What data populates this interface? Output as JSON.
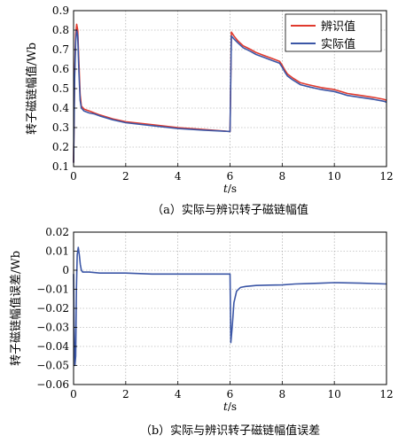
{
  "chart_data": [
    {
      "type": "line",
      "caption": "（a）实际与辨识转子磁链幅值",
      "xlabel": "t/s",
      "ylabel": "转子磁链幅值/Wb",
      "xlim": [
        0,
        12
      ],
      "ylim": [
        0.1,
        0.9
      ],
      "xticks": [
        0,
        2,
        4,
        6,
        8,
        10,
        12
      ],
      "yticks": [
        0.1,
        0.2,
        0.3,
        0.4,
        0.5,
        0.6,
        0.7,
        0.8,
        0.9
      ],
      "ytick_labels": [
        "0.1",
        "0.2",
        "0.3",
        "0.4",
        "0.5",
        "0.6",
        "0.7",
        "0.8",
        "0.9"
      ],
      "grid": true,
      "legend_position": "top-right",
      "series": [
        {
          "name": "辨识值",
          "color": "#e03a2e",
          "x": [
            0,
            0.04,
            0.08,
            0.12,
            0.16,
            0.2,
            0.25,
            0.3,
            0.4,
            0.5,
            0.6,
            0.8,
            1.0,
            1.5,
            2.0,
            3.0,
            4.0,
            5.0,
            5.99,
            6.0,
            6.05,
            6.15,
            6.3,
            6.5,
            6.8,
            7.0,
            7.3,
            7.6,
            7.9,
            8.0,
            8.1,
            8.2,
            8.4,
            8.7,
            9.0,
            9.5,
            10.0,
            10.5,
            11.0,
            11.5,
            11.9,
            12.0
          ],
          "y": [
            0.12,
            0.58,
            0.78,
            0.83,
            0.8,
            0.65,
            0.47,
            0.41,
            0.395,
            0.39,
            0.385,
            0.375,
            0.365,
            0.345,
            0.33,
            0.315,
            0.3,
            0.29,
            0.28,
            0.28,
            0.79,
            0.77,
            0.745,
            0.72,
            0.7,
            0.685,
            0.67,
            0.655,
            0.64,
            0.62,
            0.595,
            0.575,
            0.555,
            0.53,
            0.52,
            0.505,
            0.495,
            0.475,
            0.465,
            0.455,
            0.445,
            0.44
          ]
        },
        {
          "name": "实际值",
          "color": "#3b56a6",
          "x": [
            0,
            0.04,
            0.08,
            0.12,
            0.16,
            0.2,
            0.25,
            0.3,
            0.4,
            0.5,
            0.6,
            0.8,
            1.0,
            1.5,
            2.0,
            3.0,
            4.0,
            5.0,
            5.99,
            6.0,
            6.05,
            6.15,
            6.3,
            6.5,
            6.8,
            7.0,
            7.3,
            7.6,
            7.9,
            8.0,
            8.1,
            8.2,
            8.4,
            8.7,
            9.0,
            9.5,
            10.0,
            10.5,
            11.0,
            11.5,
            11.9,
            12.0
          ],
          "y": [
            0.12,
            0.55,
            0.74,
            0.8,
            0.77,
            0.6,
            0.44,
            0.4,
            0.385,
            0.38,
            0.375,
            0.37,
            0.36,
            0.34,
            0.325,
            0.31,
            0.295,
            0.287,
            0.28,
            0.28,
            0.77,
            0.755,
            0.735,
            0.71,
            0.69,
            0.675,
            0.66,
            0.645,
            0.63,
            0.61,
            0.585,
            0.565,
            0.545,
            0.52,
            0.51,
            0.495,
            0.485,
            0.465,
            0.455,
            0.445,
            0.435,
            0.43
          ]
        }
      ]
    },
    {
      "type": "line",
      "caption": "（b）实际与辨识转子磁链幅值误差",
      "xlabel": "t/s",
      "ylabel": "转子磁链幅值误差/Wb",
      "xlim": [
        0,
        12
      ],
      "ylim": [
        -0.06,
        0.02
      ],
      "xticks": [
        0,
        2,
        4,
        6,
        8,
        10,
        12
      ],
      "yticks": [
        -0.06,
        -0.05,
        -0.04,
        -0.03,
        -0.02,
        -0.01,
        0,
        0.01,
        0.02
      ],
      "ytick_labels": [
        "−0.06",
        "−0.05",
        "−0.04",
        "−0.03",
        "−0.02",
        "−0.01",
        "0",
        "0.01",
        "0.02"
      ],
      "grid": true,
      "series": [
        {
          "color": "#3b56a6",
          "x": [
            0,
            0.02,
            0.05,
            0.08,
            0.11,
            0.14,
            0.18,
            0.22,
            0.26,
            0.3,
            0.35,
            0.45,
            0.6,
            1.0,
            2.0,
            3.0,
            4.0,
            5.0,
            5.99,
            6.0,
            6.03,
            6.08,
            6.15,
            6.25,
            6.4,
            6.6,
            7.0,
            7.5,
            8.0,
            8.5,
            9.0,
            9.5,
            10.0,
            11.0,
            12.0
          ],
          "y": [
            -0.002,
            -0.03,
            -0.05,
            -0.045,
            -0.01,
            0.008,
            0.012,
            0.008,
            0.003,
            0.0,
            -0.001,
            -0.001,
            -0.001,
            -0.0015,
            -0.0015,
            -0.002,
            -0.002,
            -0.002,
            -0.002,
            -0.002,
            -0.038,
            -0.03,
            -0.017,
            -0.011,
            -0.009,
            -0.0085,
            -0.008,
            -0.0078,
            -0.0077,
            -0.0072,
            -0.007,
            -0.0068,
            -0.0065,
            -0.0068,
            -0.0072
          ]
        }
      ]
    }
  ]
}
